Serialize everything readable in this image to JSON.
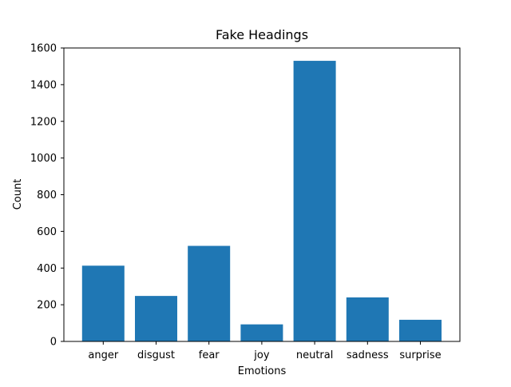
{
  "chart_data": {
    "type": "bar",
    "title": "Fake Headings",
    "xlabel": "Emotions",
    "ylabel": "Count",
    "categories": [
      "anger",
      "disgust",
      "fear",
      "joy",
      "neutral",
      "sadness",
      "surprise"
    ],
    "values": [
      413,
      248,
      521,
      93,
      1530,
      240,
      118
    ],
    "ylim": [
      0,
      1600
    ],
    "yticks": [
      0,
      200,
      400,
      600,
      800,
      1000,
      1200,
      1400,
      1600
    ],
    "grid": false,
    "bar_color": "#1f77b4"
  }
}
